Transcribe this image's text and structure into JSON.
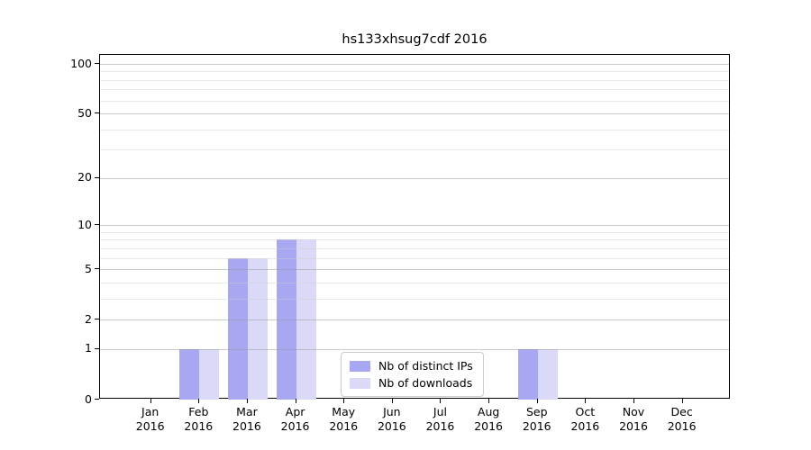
{
  "chart_data": {
    "type": "bar",
    "title": "hs133xhsug7cdf 2016",
    "x_months": [
      "Jan",
      "Feb",
      "Mar",
      "Apr",
      "May",
      "Jun",
      "Jul",
      "Aug",
      "Sep",
      "Oct",
      "Nov",
      "Dec"
    ],
    "x_year": "2016",
    "categories": [
      "Jan 2016",
      "Feb 2016",
      "Mar 2016",
      "Apr 2016",
      "May 2016",
      "Jun 2016",
      "Jul 2016",
      "Aug 2016",
      "Sep 2016",
      "Oct 2016",
      "Nov 2016",
      "Dec 2016"
    ],
    "series": [
      {
        "name": "Nb of distinct IPs",
        "color": "#a8a8f2",
        "values": [
          0,
          1,
          6,
          8,
          0,
          0,
          0,
          0,
          1,
          0,
          0,
          0
        ]
      },
      {
        "name": "Nb of downloads",
        "color": "#dadaf8",
        "values": [
          0,
          1,
          6,
          8,
          0,
          0,
          0,
          0,
          1,
          0,
          0,
          0
        ]
      }
    ],
    "xlabel": "",
    "ylabel": "",
    "y_axis": {
      "scale": "log1p",
      "major_ticks": [
        0,
        1,
        2,
        5,
        10,
        20,
        50,
        100
      ],
      "minor_gridlines": [
        3,
        4,
        6,
        7,
        8,
        9,
        30,
        40,
        60,
        70,
        80,
        90
      ],
      "ylim": [
        0,
        100
      ]
    },
    "grid": true,
    "legend": {
      "position": "inside-bottom-center",
      "entries": [
        "Nb of distinct IPs",
        "Nb of downloads"
      ]
    },
    "colors": {
      "axis": "#000000",
      "grid_major": "#d0d0d0",
      "grid_minor": "#e7e7e7",
      "legend_border": "#cccccc",
      "background": "#ffffff"
    }
  }
}
